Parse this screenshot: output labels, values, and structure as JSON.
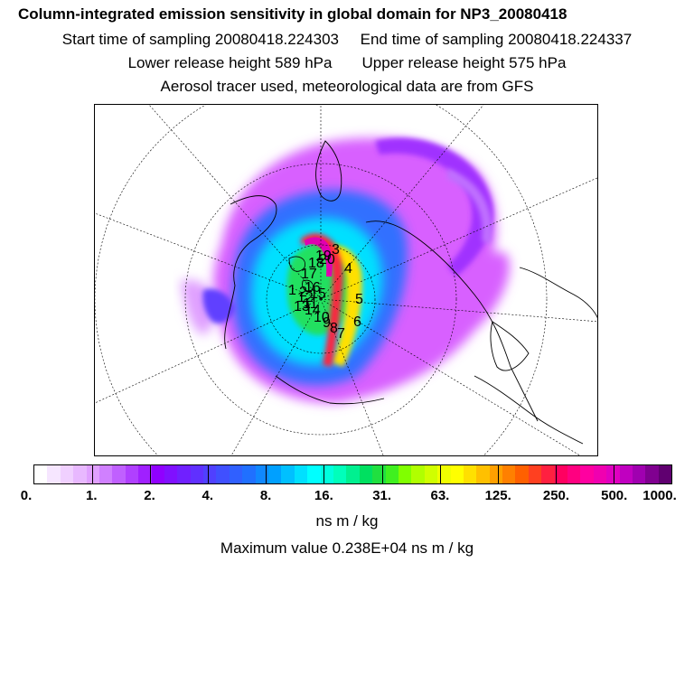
{
  "header": {
    "title": "Column-integrated emission sensitivity in global domain for NP3_20080418",
    "start_label": "Start time of sampling 20080418.224303",
    "end_label": "End time of sampling 20080418.224337",
    "lower_label": "Lower release height  589 hPa",
    "upper_label": "Upper release height  575 hPa",
    "note": "Aerosol tracer used, meteorological data are from GFS"
  },
  "map": {
    "projection": "polar-stereographic",
    "trajectory_labels": [
      "1",
      "2",
      "3",
      "4",
      "5",
      "6",
      "7",
      "8",
      "9",
      "10",
      "11",
      "12",
      "13",
      "14",
      "15",
      "16",
      "17",
      "18",
      "19",
      "20"
    ]
  },
  "colorbar": {
    "tick_labels": [
      "0.",
      "1.",
      "2.",
      "4.",
      "8.",
      "16.",
      "31.",
      "63.",
      "125.",
      "250.",
      "500.",
      "1000."
    ],
    "colors": [
      "#ffffff",
      "#f6e6ff",
      "#f0d0ff",
      "#e8b8ff",
      "#e0a0ff",
      "#d080ff",
      "#c060ff",
      "#b040ff",
      "#a020ff",
      "#9000ff",
      "#8010ff",
      "#7020ff",
      "#6030ff",
      "#5040ff",
      "#4050ff",
      "#3060ff",
      "#2070ff",
      "#1088ff",
      "#00a0ff",
      "#00c0ff",
      "#00e0ff",
      "#00ffff",
      "#00ffdd",
      "#00ffbb",
      "#00f090",
      "#00e060",
      "#20e040",
      "#40f020",
      "#80ff00",
      "#b0ff00",
      "#d0ff00",
      "#f0ff00",
      "#ffff00",
      "#ffe000",
      "#ffc000",
      "#ffa000",
      "#ff8000",
      "#ff6000",
      "#ff4020",
      "#ff2040",
      "#ff0060",
      "#ff0080",
      "#ff00a0",
      "#f000b0",
      "#e000c0",
      "#c000c0",
      "#a000b0",
      "#800090",
      "#600070"
    ]
  },
  "units_label": "ns m / kg",
  "max_label": "Maximum value  0.238E+04 ns m / kg"
}
